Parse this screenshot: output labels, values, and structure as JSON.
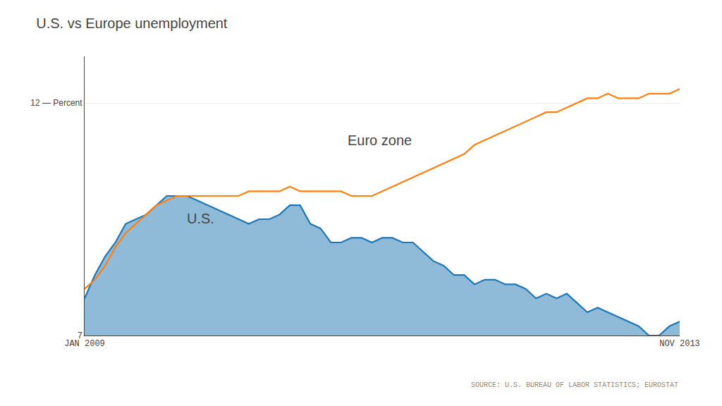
{
  "chart_data": {
    "type": "area",
    "title": "U.S. vs Europe unemployment",
    "categories": [
      "JAN 2009",
      null,
      null,
      null,
      null,
      null,
      null,
      null,
      null,
      null,
      null,
      null,
      null,
      null,
      null,
      null,
      null,
      null,
      null,
      null,
      null,
      null,
      null,
      null,
      null,
      null,
      null,
      null,
      null,
      null,
      null,
      null,
      null,
      null,
      null,
      null,
      null,
      null,
      null,
      null,
      null,
      null,
      null,
      null,
      null,
      null,
      null,
      null,
      null,
      null,
      null,
      null,
      null,
      null,
      null,
      null,
      null,
      null,
      "NOV 2013"
    ],
    "series": [
      {
        "name": "U.S.",
        "type": "area",
        "values": [
          7.8,
          8.3,
          8.7,
          9.0,
          9.4,
          9.5,
          9.6,
          9.8,
          10.0,
          10.0,
          10.0,
          9.9,
          9.8,
          9.7,
          9.6,
          9.5,
          9.4,
          9.5,
          9.5,
          9.6,
          9.8,
          9.8,
          9.4,
          9.3,
          9.0,
          9.0,
          9.1,
          9.1,
          9.0,
          9.1,
          9.1,
          9.0,
          9.0,
          8.8,
          8.6,
          8.5,
          8.3,
          8.3,
          8.1,
          8.2,
          8.2,
          8.1,
          8.1,
          8.0,
          7.8,
          7.9,
          7.8,
          7.9,
          7.7,
          7.5,
          7.6,
          7.5,
          7.4,
          7.3,
          7.2,
          7.0,
          7.0,
          7.2,
          7.3
        ]
      },
      {
        "name": "Euro zone",
        "type": "line",
        "values": [
          8.0,
          8.2,
          8.5,
          8.9,
          9.2,
          9.4,
          9.6,
          9.8,
          9.9,
          10.0,
          10.0,
          10.0,
          10.0,
          10.0,
          10.0,
          10.0,
          10.1,
          10.1,
          10.1,
          10.1,
          10.2,
          10.1,
          10.1,
          10.1,
          10.1,
          10.1,
          10.0,
          10.0,
          10.0,
          10.1,
          10.2,
          10.3,
          10.4,
          10.5,
          10.6,
          10.7,
          10.8,
          10.9,
          11.1,
          11.2,
          11.3,
          11.4,
          11.5,
          11.6,
          11.7,
          11.8,
          11.8,
          11.9,
          12.0,
          12.1,
          12.1,
          12.2,
          12.1,
          12.1,
          12.1,
          12.2,
          12.2,
          12.2,
          12.3
        ]
      }
    ],
    "ylim": [
      7,
      13
    ],
    "yticks": [
      7,
      {
        "value": 12,
        "label": "12 — Percent"
      }
    ],
    "grid": true,
    "annotations": [
      "SOURCE: U.S. BUREAU OF LABOR STATISTICS; EUROSTAT"
    ]
  }
}
